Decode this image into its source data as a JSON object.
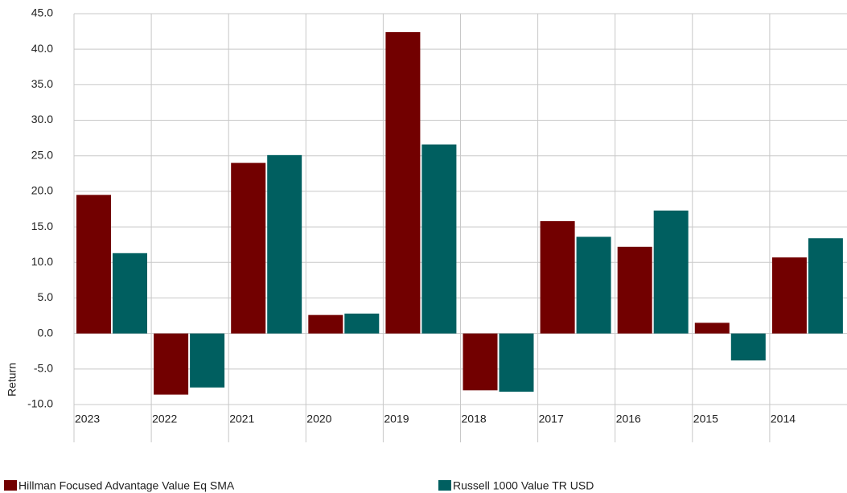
{
  "chart_data": {
    "type": "bar",
    "y_label": "Return",
    "categories": [
      "2023",
      "2022",
      "2021",
      "2020",
      "2019",
      "2018",
      "2017",
      "2016",
      "2015",
      "2014"
    ],
    "series": [
      {
        "name": "Hillman Focused Advantage Value Eq SMA",
        "color": "#720000",
        "values": [
          19.5,
          -8.6,
          24.0,
          2.6,
          42.4,
          -8.0,
          15.8,
          12.2,
          1.5,
          10.7
        ]
      },
      {
        "name": "Russell 1000 Value TR USD",
        "color": "#005f60",
        "values": [
          11.3,
          -7.6,
          25.1,
          2.8,
          26.6,
          -8.2,
          13.6,
          17.3,
          -3.8,
          13.4
        ]
      }
    ],
    "ylim": [
      -10,
      45
    ],
    "yticks": [
      {
        "value": -10,
        "label": "-10.0"
      },
      {
        "value": -5,
        "label": "-5.0"
      },
      {
        "value": 0,
        "label": "0.0"
      },
      {
        "value": 5,
        "label": "5.0"
      },
      {
        "value": 10,
        "label": "10.0"
      },
      {
        "value": 15,
        "label": "15.0"
      },
      {
        "value": 20,
        "label": "20.0"
      },
      {
        "value": 25,
        "label": "25.0"
      },
      {
        "value": 30,
        "label": "30.0"
      },
      {
        "value": 35,
        "label": "35.0"
      },
      {
        "value": 40,
        "label": "40.0"
      },
      {
        "value": 45,
        "label": "45.0"
      }
    ],
    "grid": true,
    "legend": "bottom"
  }
}
